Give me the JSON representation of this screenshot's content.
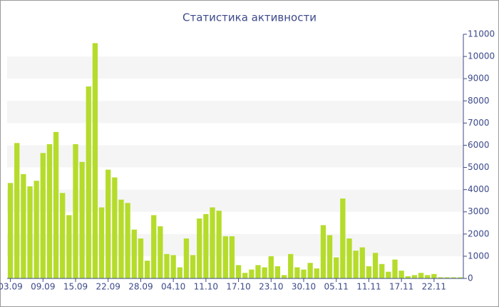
{
  "chart_data": {
    "type": "bar",
    "title": "Статистика активности",
    "categories": [
      "03.09",
      null,
      null,
      null,
      null,
      "09.09",
      null,
      null,
      null,
      null,
      "15.09",
      null,
      null,
      null,
      null,
      "22.09",
      null,
      null,
      null,
      null,
      "28.09",
      null,
      null,
      null,
      null,
      "04.10",
      null,
      null,
      null,
      null,
      "11.10",
      null,
      null,
      null,
      null,
      "17.10",
      null,
      null,
      null,
      null,
      "23.10",
      null,
      null,
      null,
      null,
      "30.10",
      null,
      null,
      null,
      null,
      "05.11",
      null,
      null,
      null,
      null,
      "11.11",
      null,
      null,
      null,
      null,
      "17.11",
      null,
      null,
      null,
      null,
      "22.11",
      null,
      null,
      null,
      null
    ],
    "values": [
      4300,
      6100,
      4700,
      4150,
      4400,
      5650,
      6050,
      6600,
      3850,
      2850,
      6050,
      5250,
      8650,
      10600,
      3200,
      4900,
      4550,
      3550,
      3400,
      2200,
      1800,
      800,
      2850,
      2350,
      1100,
      1050,
      500,
      1800,
      1050,
      2700,
      2900,
      3200,
      3050,
      1900,
      1900,
      600,
      250,
      400,
      600,
      500,
      1000,
      550,
      150,
      1100,
      500,
      400,
      700,
      450,
      2400,
      1950,
      950,
      3600,
      1800,
      1250,
      1400,
      550,
      1150,
      650,
      300,
      850,
      350,
      100,
      150,
      250,
      150,
      200,
      50,
      50,
      50,
      50
    ],
    "color": "#b5dc2b",
    "ylim": [
      0,
      11000
    ],
    "yticks": [
      0,
      1000,
      2000,
      3000,
      4000,
      5000,
      6000,
      7000,
      8000,
      9000,
      10000,
      11000
    ],
    "grid": true
  }
}
